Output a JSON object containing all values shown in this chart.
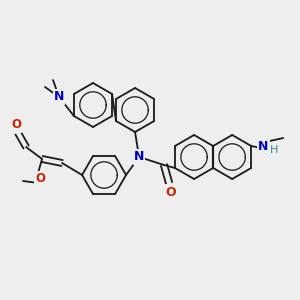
{
  "bg_color": "#eeeeee",
  "bond_color": "#1a1a1a",
  "bond_lw": 1.3,
  "ring_r": 0.06,
  "N_color": "#0000cc",
  "NH_color": "#3a8888",
  "O_color": "#cc2200",
  "figsize": [
    3.0,
    3.0
  ],
  "dpi": 100,
  "xlim": [
    0,
    300
  ],
  "ylim": [
    0,
    300
  ]
}
